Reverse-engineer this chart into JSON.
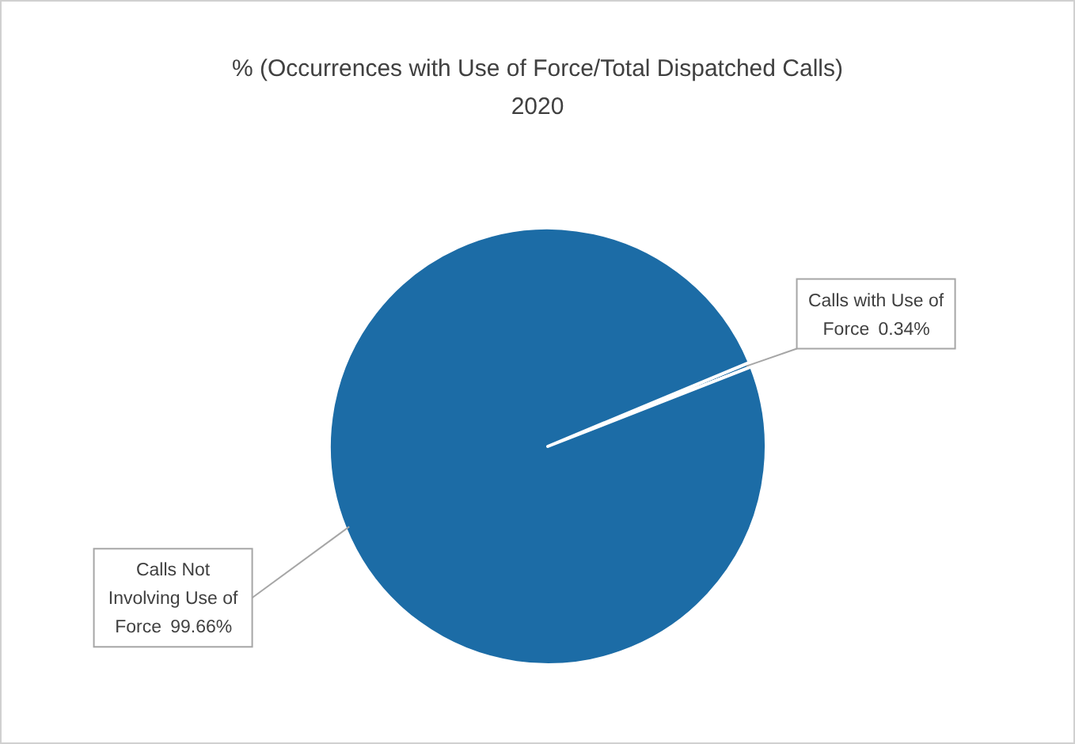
{
  "chart_data": {
    "type": "pie",
    "title": "% (Occurrences with Use of Force/Total Dispatched Calls)\n2020",
    "categories": [
      "Calls with Use of Force",
      "Calls Not Involving Use of Force"
    ],
    "values": [
      0.34,
      99.66
    ],
    "value_labels": [
      "0.34%",
      "99.66%"
    ],
    "colors": [
      "#1c6ca6",
      "#1c6ca6"
    ]
  }
}
